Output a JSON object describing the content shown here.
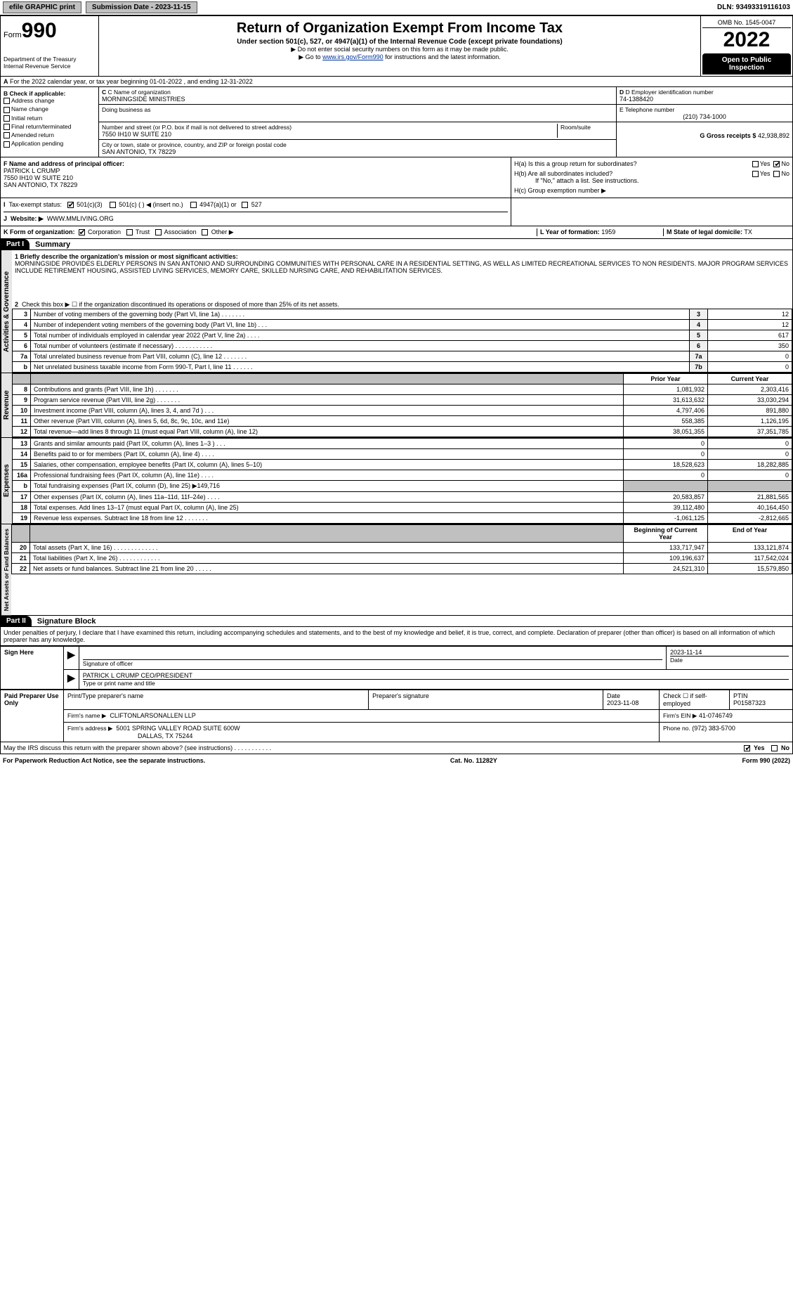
{
  "topbar": {
    "efile_label": "efile GRAPHIC print",
    "submission_label": "Submission Date - 2023-11-15",
    "dln_label": "DLN: 93493319116103"
  },
  "header": {
    "form_word": "Form",
    "form_num": "990",
    "dept1": "Department of the Treasury",
    "dept2": "Internal Revenue Service",
    "title": "Return of Organization Exempt From Income Tax",
    "subtitle": "Under section 501(c), 527, or 4947(a)(1) of the Internal Revenue Code (except private foundations)",
    "note1": "▶ Do not enter social security numbers on this form as it may be made public.",
    "note2_pre": "▶ Go to ",
    "note2_link": "www.irs.gov/Form990",
    "note2_post": " for instructions and the latest information.",
    "omb": "OMB No. 1545-0047",
    "year": "2022",
    "open_public": "Open to Public Inspection"
  },
  "periodA": "For the 2022 calendar year, or tax year beginning 01-01-2022    , and ending 12-31-2022",
  "checkB": {
    "heading": "B Check if applicable:",
    "items": [
      "Address change",
      "Name change",
      "Initial return",
      "Final return/terminated",
      "Amended return",
      "Application pending"
    ]
  },
  "blockC": {
    "c_label": "C Name of organization",
    "org_name": "MORNINGSIDE MINISTRIES",
    "dba_label": "Doing business as",
    "addr_label": "Number and street (or P.O. box if mail is not delivered to street address)",
    "room_label": "Room/suite",
    "street": "7550 IH10 W SUITE 210",
    "city_label": "City or town, state or province, country, and ZIP or foreign postal code",
    "city": "SAN ANTONIO, TX  78229"
  },
  "blockD": {
    "d_label": "D Employer identification number",
    "ein": "74-1388420",
    "e_label": "E Telephone number",
    "phone": "(210) 734-1000",
    "g_label": "G Gross receipts $",
    "gross": "42,938,892"
  },
  "blockF": {
    "f_label": "F Name and address of principal officer:",
    "name": "PATRICK L CRUMP",
    "addr1": "7550 IH10 W SUITE 210",
    "addr2": "SAN ANTONIO, TX  78229"
  },
  "blockH": {
    "ha": "H(a)  Is this a group return for subordinates?",
    "hb": "H(b)  Are all subordinates included?",
    "hb_note": "If \"No,\" attach a list. See instructions.",
    "hc": "H(c)  Group exemption number ▶",
    "yes": "Yes",
    "no": "No"
  },
  "taxExempt": {
    "i_label": "Tax-exempt status:",
    "opt1": "501(c)(3)",
    "opt2": "501(c) (  ) ◀ (insert no.)",
    "opt3": "4947(a)(1) or",
    "opt4": "527"
  },
  "website": {
    "j_label": "J",
    "label": "Website: ▶",
    "value": "WWW.MMLIVING.ORG"
  },
  "blockK": {
    "k_label": "K Form of organization:",
    "opts": [
      "Corporation",
      "Trust",
      "Association",
      "Other ▶"
    ],
    "l_label": "L Year of formation:",
    "l_val": "1959",
    "m_label": "M State of legal domicile:",
    "m_val": "TX"
  },
  "partI": {
    "num": "Part I",
    "title": "Summary"
  },
  "mission": {
    "line1_label": "1 Briefly describe the organization's mission or most significant activities:",
    "text": "MORNINGSIDE PROVIDES ELDERLY PERSONS IN SAN ANTONIO AND SURROUNDING COMMUNITIES WITH PERSONAL CARE IN A RESIDENTIAL SETTING, AS WELL AS LIMITED RECREATIONAL SERVICES TO NON RESIDENTS. MAJOR PROGRAM SERVICES INCLUDE RETIREMENT HOUSING, ASSISTED LIVING SERVICES, MEMORY CARE, SKILLED NURSING CARE, AND REHABILITATION SERVICES."
  },
  "governance": {
    "vtab": "Activities & Governance",
    "line2": "Check this box ▶ ☐  if the organization discontinued its operations or disposed of more than 25% of its net assets.",
    "rows": [
      {
        "n": "3",
        "label": "Number of voting members of the governing body (Part VI, line 1a)   .    .    .    .    .    .    .",
        "box": "3",
        "val": "12"
      },
      {
        "n": "4",
        "label": "Number of independent voting members of the governing body (Part VI, line 1b)    .    .    .",
        "box": "4",
        "val": "12"
      },
      {
        "n": "5",
        "label": "Total number of individuals employed in calendar year 2022 (Part V, line 2a)   .    .    .    .",
        "box": "5",
        "val": "617"
      },
      {
        "n": "6",
        "label": "Total number of volunteers (estimate if necessary)   .    .    .    .    .    .    .    .    .    .    .",
        "box": "6",
        "val": "350"
      },
      {
        "n": "7a",
        "label": "Total unrelated business revenue from Part VIII, column (C), line 12  .    .    .    .    .    .    .",
        "box": "7a",
        "val": "0"
      },
      {
        "n": "b",
        "label": "Net unrelated business taxable income from Form 990-T, Part I, line 11   .    .    .    .    .    .",
        "box": "7b",
        "val": "0"
      }
    ]
  },
  "revenue": {
    "vtab": "Revenue",
    "hdr_prior": "Prior Year",
    "hdr_curr": "Current Year",
    "rows": [
      {
        "n": "8",
        "label": "Contributions and grants (Part VIII, line 1h)   .    .    .    .    .    .    .",
        "p": "1,081,932",
        "c": "2,303,416"
      },
      {
        "n": "9",
        "label": "Program service revenue (Part VIII, line 2g)   .    .    .    .    .    .    .",
        "p": "31,613,632",
        "c": "33,030,294"
      },
      {
        "n": "10",
        "label": "Investment income (Part VIII, column (A), lines 3, 4, and 7d )   .    .    .",
        "p": "4,797,406",
        "c": "891,880"
      },
      {
        "n": "11",
        "label": "Other revenue (Part VIII, column (A), lines 5, 6d, 8c, 9c, 10c, and 11e)",
        "p": "558,385",
        "c": "1,126,195"
      },
      {
        "n": "12",
        "label": "Total revenue—add lines 8 through 11 (must equal Part VIII, column (A), line 12)",
        "p": "38,051,355",
        "c": "37,351,785"
      }
    ]
  },
  "expenses": {
    "vtab": "Expenses",
    "rows": [
      {
        "n": "13",
        "label": "Grants and similar amounts paid (Part IX, column (A), lines 1–3 )  .    .    .",
        "p": "0",
        "c": "0"
      },
      {
        "n": "14",
        "label": "Benefits paid to or for members (Part IX, column (A), line 4)   .    .    .    .",
        "p": "0",
        "c": "0"
      },
      {
        "n": "15",
        "label": "Salaries, other compensation, employee benefits (Part IX, column (A), lines 5–10)",
        "p": "18,528,623",
        "c": "18,282,885"
      },
      {
        "n": "16a",
        "label": "Professional fundraising fees (Part IX, column (A), line 11e)   .    .    .    .",
        "p": "0",
        "c": "0"
      },
      {
        "n": "b",
        "label": "Total fundraising expenses (Part IX, column (D), line 25) ▶149,716",
        "p": "",
        "c": "",
        "shadeC": true
      },
      {
        "n": "17",
        "label": "Other expenses (Part IX, column (A), lines 11a–11d, 11f–24e)   .    .    .    .",
        "p": "20,583,857",
        "c": "21,881,565"
      },
      {
        "n": "18",
        "label": "Total expenses. Add lines 13–17 (must equal Part IX, column (A), line 25)",
        "p": "39,112,480",
        "c": "40,164,450"
      },
      {
        "n": "19",
        "label": "Revenue less expenses. Subtract line 18 from line 12  .    .    .    .    .    .    .",
        "p": "-1,061,125",
        "c": "-2,812,665"
      }
    ]
  },
  "netassets": {
    "vtab": "Net Assets or Fund Balances",
    "hdr_beg": "Beginning of Current Year",
    "hdr_end": "End of Year",
    "rows": [
      {
        "n": "20",
        "label": "Total assets (Part X, line 16)  .    .    .    .    .    .    .    .    .    .    .    .    .",
        "p": "133,717,947",
        "c": "133,121,874"
      },
      {
        "n": "21",
        "label": "Total liabilities (Part X, line 26)  .    .    .    .    .    .    .    .    .    .    .    .",
        "p": "109,196,637",
        "c": "117,542,024"
      },
      {
        "n": "22",
        "label": "Net assets or fund balances. Subtract line 21 from line 20  .    .    .    .    .",
        "p": "24,521,310",
        "c": "15,579,850"
      }
    ]
  },
  "partII": {
    "num": "Part II",
    "title": "Signature Block"
  },
  "penalties": "Under penalties of perjury, I declare that I have examined this return, including accompanying schedules and statements, and to the best of my knowledge and belief, it is true, correct, and complete. Declaration of preparer (other than officer) is based on all information of which preparer has any knowledge.",
  "sign": {
    "left": "Sign Here",
    "sig_label": "Signature of officer",
    "date_label": "Date",
    "date": "2023-11-14",
    "name": "PATRICK L CRUMP  CEO/PRESIDENT",
    "name_label": "Type or print name and title"
  },
  "paid": {
    "left": "Paid Preparer Use Only",
    "h1": "Print/Type preparer's name",
    "h2": "Preparer's signature",
    "h3": "Date",
    "h4": "Check ☐ if self-employed",
    "h5": "PTIN",
    "date": "2023-11-08",
    "ptin": "P01587323",
    "firm_label": "Firm's name    ▶",
    "firm": "CLIFTONLARSONALLEN LLP",
    "ein_label": "Firm's EIN ▶",
    "ein": "41-0746749",
    "addr_label": "Firm's address ▶",
    "addr1": "5001 SPRING VALLEY ROAD SUITE 600W",
    "addr2": "DALLAS, TX  75244",
    "phone_label": "Phone no.",
    "phone": "(972) 383-5700"
  },
  "discuss": {
    "q": "May the IRS discuss this return with the preparer shown above? (see instructions)   .    .    .    .    .    .    .    .    .    .    .",
    "yes": "Yes",
    "no": "No"
  },
  "footer": {
    "left": "For Paperwork Reduction Act Notice, see the separate instructions.",
    "mid": "Cat. No. 11282Y",
    "right": "Form 990 (2022)"
  },
  "colors": {
    "link": "#003399",
    "shade": "#c0c0c0",
    "vtab_bg": "#e6e6e6"
  }
}
